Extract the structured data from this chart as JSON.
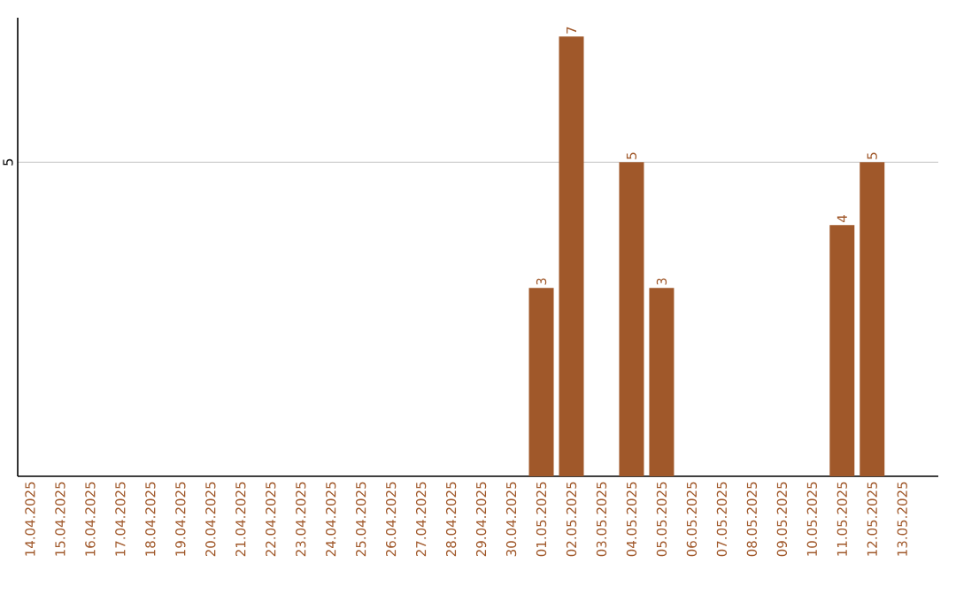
{
  "chart_data": {
    "type": "bar",
    "categories": [
      "14.04.2025",
      "15.04.2025",
      "16.04.2025",
      "17.04.2025",
      "18.04.2025",
      "19.04.2025",
      "20.04.2025",
      "21.04.2025",
      "22.04.2025",
      "23.04.2025",
      "24.04.2025",
      "25.04.2025",
      "26.04.2025",
      "27.04.2025",
      "28.04.2025",
      "29.04.2025",
      "30.04.2025",
      "01.05.2025",
      "02.05.2025",
      "03.05.2025",
      "04.05.2025",
      "05.05.2025",
      "06.05.2025",
      "07.05.2025",
      "08.05.2025",
      "09.05.2025",
      "10.05.2025",
      "11.05.2025",
      "12.05.2025",
      "13.05.2025"
    ],
    "values": [
      null,
      null,
      null,
      null,
      null,
      null,
      null,
      null,
      null,
      null,
      null,
      null,
      null,
      null,
      null,
      null,
      null,
      3,
      7,
      null,
      5,
      3,
      null,
      null,
      null,
      null,
      null,
      4,
      5,
      null
    ],
    "data_labels": true,
    "color": "#a0582a",
    "ylim": [
      0,
      7.3
    ],
    "yticks": [
      5
    ],
    "grid": "y"
  }
}
